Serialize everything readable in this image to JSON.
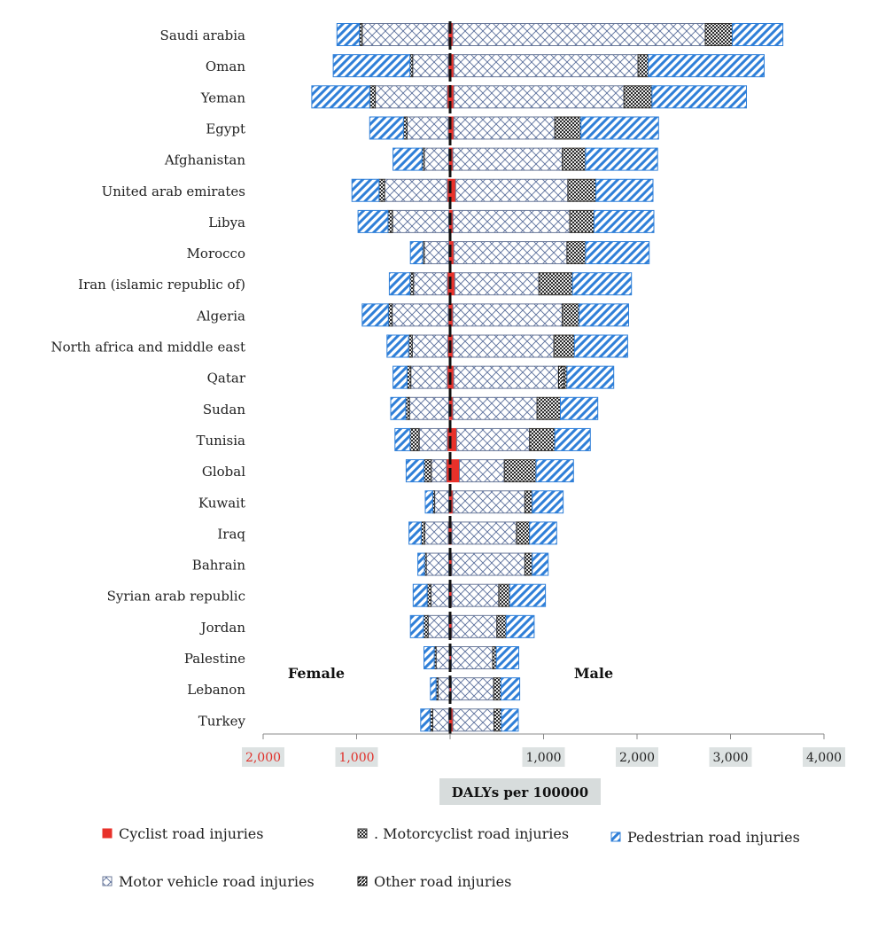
{
  "chart_data": {
    "type": "bar",
    "orientation": "horizontal",
    "layout": "population pyramid (female left, male right), stacked",
    "xlabel": "DALYs per 100000",
    "side_labels": {
      "female": "Female",
      "male": "Male"
    },
    "ticks": [
      {
        "value": -2000,
        "label": "2,000",
        "color": "#e0302a"
      },
      {
        "value": -1000,
        "label": "1,000",
        "color": "#e0302a"
      },
      {
        "value": 1000,
        "label": "1,000",
        "color": "#222222"
      },
      {
        "value": 2000,
        "label": "2,000",
        "color": "#222222"
      },
      {
        "value": 3000,
        "label": "3,000",
        "color": "#222222"
      },
      {
        "value": 4000,
        "label": "4,000",
        "color": "#222222"
      }
    ],
    "xlim": [
      -2000,
      4000
    ],
    "categories": [
      "Saudi arabia",
      "Oman",
      "Yeman",
      "Egypt",
      "Afghanistan",
      "United arab emirates",
      "Libya",
      "Morocco",
      "Iran (islamic republic of)",
      "Algeria",
      "North africa and middle east",
      "Qatar",
      "Sudan",
      "Tunisia",
      "Global",
      "Kuwait",
      "Iraq",
      "Bahrain",
      "Syrian arab republic",
      "Jordan",
      "Palestine",
      "Lebanon",
      "Turkey"
    ],
    "series": [
      {
        "name": "Cyclist road injuries",
        "key": "cyclist",
        "color": "#e8312a",
        "pattern": "solid"
      },
      {
        "name": "Motor vehicle road injuries",
        "key": "motor",
        "color": "#4a5f9a",
        "pattern": "crosshatch"
      },
      {
        "name": "Other road injuries",
        "key": "other",
        "color": "#222222",
        "pattern": "dense"
      },
      {
        "name": "Motorcyclist road injuries",
        "key": "motorcyclist",
        "color": "#333333",
        "pattern": "checker"
      },
      {
        "name": "Pedestrian road injuries",
        "key": "pedestrian",
        "color": "#2f7fd8",
        "pattern": "diagonal"
      }
    ],
    "female": [
      {
        "cyclist": 20,
        "motor": 920,
        "other": 0,
        "motorcyclist": 30,
        "pedestrian": 240
      },
      {
        "cyclist": 20,
        "motor": 380,
        "other": 0,
        "motorcyclist": 30,
        "pedestrian": 820
      },
      {
        "cyclist": 30,
        "motor": 770,
        "other": 0,
        "motorcyclist": 60,
        "pedestrian": 620
      },
      {
        "cyclist": 20,
        "motor": 440,
        "other": 0,
        "motorcyclist": 40,
        "pedestrian": 360
      },
      {
        "cyclist": 15,
        "motor": 260,
        "other": 0,
        "motorcyclist": 25,
        "pedestrian": 310
      },
      {
        "cyclist": 30,
        "motor": 670,
        "other": 0,
        "motorcyclist": 60,
        "pedestrian": 290
      },
      {
        "cyclist": 15,
        "motor": 600,
        "other": 0,
        "motorcyclist": 50,
        "pedestrian": 320
      },
      {
        "cyclist": 15,
        "motor": 260,
        "other": 0,
        "motorcyclist": 20,
        "pedestrian": 130
      },
      {
        "cyclist": 30,
        "motor": 360,
        "other": 0,
        "motorcyclist": 40,
        "pedestrian": 220
      },
      {
        "cyclist": 20,
        "motor": 600,
        "other": 0,
        "motorcyclist": 40,
        "pedestrian": 280
      },
      {
        "cyclist": 25,
        "motor": 380,
        "other": 0,
        "motorcyclist": 40,
        "pedestrian": 230
      },
      {
        "cyclist": 30,
        "motor": 390,
        "other": 0,
        "motorcyclist": 40,
        "pedestrian": 150
      },
      {
        "cyclist": 15,
        "motor": 420,
        "other": 0,
        "motorcyclist": 40,
        "pedestrian": 160
      },
      {
        "cyclist": 30,
        "motor": 300,
        "other": 0,
        "motorcyclist": 100,
        "pedestrian": 160
      },
      {
        "cyclist": 40,
        "motor": 160,
        "other": 0,
        "motorcyclist": 80,
        "pedestrian": 190
      },
      {
        "cyclist": 15,
        "motor": 150,
        "other": 0,
        "motorcyclist": 20,
        "pedestrian": 80
      },
      {
        "cyclist": 20,
        "motor": 250,
        "other": 0,
        "motorcyclist": 40,
        "pedestrian": 130
      },
      {
        "cyclist": 15,
        "motor": 240,
        "other": 0,
        "motorcyclist": 20,
        "pedestrian": 70
      },
      {
        "cyclist": 15,
        "motor": 190,
        "other": 0,
        "motorcyclist": 40,
        "pedestrian": 150
      },
      {
        "cyclist": 15,
        "motor": 220,
        "other": 0,
        "motorcyclist": 50,
        "pedestrian": 140
      },
      {
        "cyclist": 10,
        "motor": 140,
        "other": 0,
        "motorcyclist": 20,
        "pedestrian": 110
      },
      {
        "cyclist": 10,
        "motor": 120,
        "other": 0,
        "motorcyclist": 20,
        "pedestrian": 60
      },
      {
        "cyclist": 15,
        "motor": 170,
        "other": 0,
        "motorcyclist": 30,
        "pedestrian": 100
      }
    ],
    "male": [
      {
        "cyclist": 30,
        "motor": 2700,
        "other": 0,
        "motorcyclist": 290,
        "pedestrian": 540
      },
      {
        "cyclist": 40,
        "motor": 1970,
        "other": 0,
        "motorcyclist": 110,
        "pedestrian": 1240
      },
      {
        "cyclist": 40,
        "motor": 1820,
        "other": 0,
        "motorcyclist": 300,
        "pedestrian": 1010
      },
      {
        "cyclist": 40,
        "motor": 1080,
        "other": 0,
        "motorcyclist": 280,
        "pedestrian": 830
      },
      {
        "cyclist": 30,
        "motor": 1170,
        "other": 0,
        "motorcyclist": 250,
        "pedestrian": 770
      },
      {
        "cyclist": 60,
        "motor": 1200,
        "other": 0,
        "motorcyclist": 300,
        "pedestrian": 610
      },
      {
        "cyclist": 30,
        "motor": 1250,
        "other": 0,
        "motorcyclist": 260,
        "pedestrian": 640
      },
      {
        "cyclist": 40,
        "motor": 1210,
        "other": 0,
        "motorcyclist": 200,
        "pedestrian": 680
      },
      {
        "cyclist": 50,
        "motor": 900,
        "other": 0,
        "motorcyclist": 360,
        "pedestrian": 630
      },
      {
        "cyclist": 30,
        "motor": 1170,
        "other": 0,
        "motorcyclist": 180,
        "pedestrian": 530
      },
      {
        "cyclist": 30,
        "motor": 1080,
        "other": 0,
        "motorcyclist": 220,
        "pedestrian": 570
      },
      {
        "cyclist": 40,
        "motor": 1120,
        "other": 60,
        "motorcyclist": 30,
        "pedestrian": 500
      },
      {
        "cyclist": 30,
        "motor": 900,
        "other": 0,
        "motorcyclist": 250,
        "pedestrian": 400
      },
      {
        "cyclist": 70,
        "motor": 780,
        "other": 0,
        "motorcyclist": 270,
        "pedestrian": 380
      },
      {
        "cyclist": 100,
        "motor": 480,
        "other": 0,
        "motorcyclist": 340,
        "pedestrian": 400
      },
      {
        "cyclist": 30,
        "motor": 770,
        "other": 0,
        "motorcyclist": 80,
        "pedestrian": 330
      },
      {
        "cyclist": 20,
        "motor": 690,
        "other": 0,
        "motorcyclist": 140,
        "pedestrian": 290
      },
      {
        "cyclist": 20,
        "motor": 780,
        "other": 0,
        "motorcyclist": 80,
        "pedestrian": 170
      },
      {
        "cyclist": 20,
        "motor": 500,
        "other": 0,
        "motorcyclist": 120,
        "pedestrian": 380
      },
      {
        "cyclist": 20,
        "motor": 480,
        "other": 0,
        "motorcyclist": 100,
        "pedestrian": 300
      },
      {
        "cyclist": 15,
        "motor": 440,
        "other": 0,
        "motorcyclist": 40,
        "pedestrian": 240
      },
      {
        "cyclist": 15,
        "motor": 450,
        "other": 0,
        "motorcyclist": 80,
        "pedestrian": 200
      },
      {
        "cyclist": 30,
        "motor": 440,
        "other": 0,
        "motorcyclist": 80,
        "pedestrian": 180
      }
    ],
    "legend": [
      {
        "key": "cyclist",
        "label": "Cyclist road injuries"
      },
      {
        "key": "motorcyclist",
        "label": ". Motorcyclist road injuries"
      },
      {
        "key": "pedestrian",
        "label": "Pedestrian road injuries"
      },
      {
        "key": "motor",
        "label": "Motor vehicle road injuries"
      },
      {
        "key": "other",
        "label": "Other road injuries"
      }
    ],
    "legend_position": "bottom",
    "grid": false
  }
}
